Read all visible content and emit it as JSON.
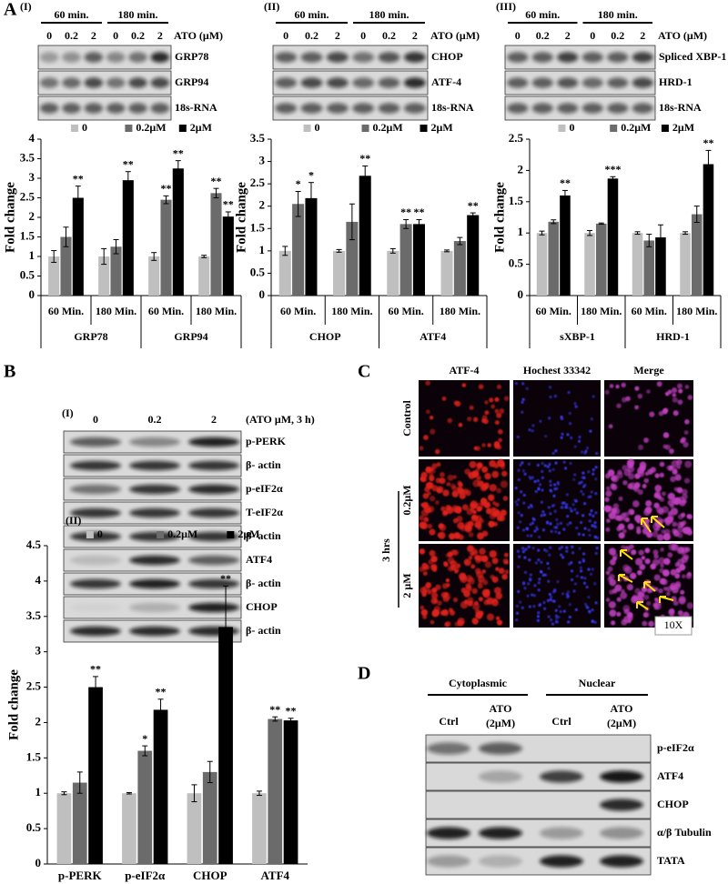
{
  "panel_labels": [
    "A",
    "B",
    "C",
    "D"
  ],
  "panel_A": {
    "blots": [
      {
        "label": "(I)",
        "times": [
          "60 min.",
          "180 min."
        ],
        "doses": [
          "0",
          "0.2",
          "2",
          "0",
          "0.2",
          "2"
        ],
        "unit": "ATO (μM)",
        "rows": [
          "GRP78",
          "GRP94",
          "18s-RNA"
        ]
      },
      {
        "label": "(II)",
        "times": [
          "60 min.",
          "180 min."
        ],
        "doses": [
          "0",
          "0.2",
          "2",
          "0",
          "0.2",
          "2"
        ],
        "unit": "ATO (μM)",
        "rows": [
          "CHOP",
          "ATF-4",
          "18s-RNA"
        ]
      },
      {
        "label": "(III)",
        "times": [
          "60 min.",
          "180 min."
        ],
        "doses": [
          "0",
          "0.2",
          "2",
          "0",
          "0.2",
          "2"
        ],
        "unit": "ATO (μM)",
        "rows": [
          "Spliced XBP-1",
          "HRD-1",
          "18s-RNA"
        ]
      }
    ]
  },
  "chart_data": [
    {
      "type": "bar",
      "ylabel": "Fold change",
      "ylim": [
        0,
        4
      ],
      "yticks": [
        0,
        0.5,
        1,
        1.5,
        2,
        2.5,
        3,
        3.5,
        4
      ],
      "categories": [
        "60 Min.",
        "180 Min.",
        "60 Min.",
        "180 Min."
      ],
      "groups": [
        "GRP78",
        "GRP94"
      ],
      "series": [
        {
          "name": "0",
          "color": "#bfbfbf",
          "values": [
            1,
            1,
            1,
            1
          ],
          "errors": [
            0.15,
            0.2,
            0.1,
            0.03
          ],
          "annotations": [
            null,
            null,
            null,
            null
          ]
        },
        {
          "name": "0.2μM",
          "color": "#6b6b6b",
          "values": [
            1.5,
            1.25,
            2.45,
            2.62
          ],
          "errors": [
            0.25,
            0.18,
            0.1,
            0.12
          ],
          "annotations": [
            null,
            null,
            "**",
            "**"
          ]
        },
        {
          "name": "2μM",
          "color": "#000000",
          "values": [
            2.5,
            2.95,
            3.25,
            2.02
          ],
          "errors": [
            0.3,
            0.22,
            0.2,
            0.12
          ],
          "annotations": [
            "**",
            "**",
            "**",
            "**"
          ]
        }
      ]
    },
    {
      "type": "bar",
      "ylabel": "Fold change",
      "ylim": [
        0,
        3.5
      ],
      "yticks": [
        0,
        0.5,
        1,
        1.5,
        2,
        2.5,
        3,
        3.5
      ],
      "categories": [
        "60 Min.",
        "180 Min.",
        "60 Min.",
        "180 Min."
      ],
      "groups": [
        "CHOP",
        "ATF4"
      ],
      "series": [
        {
          "name": "0",
          "color": "#bfbfbf",
          "values": [
            1,
            1,
            1,
            1
          ],
          "errors": [
            0.1,
            0.03,
            0.05,
            0.02
          ],
          "annotations": [
            null,
            null,
            null,
            null
          ]
        },
        {
          "name": "0.2μM",
          "color": "#6b6b6b",
          "values": [
            2.05,
            1.65,
            1.6,
            1.22
          ],
          "errors": [
            0.28,
            0.4,
            0.1,
            0.08
          ],
          "annotations": [
            "*",
            null,
            "**",
            null
          ]
        },
        {
          "name": "2μM",
          "color": "#000000",
          "values": [
            2.18,
            2.68,
            1.6,
            1.8
          ],
          "errors": [
            0.35,
            0.22,
            0.1,
            0.05
          ],
          "annotations": [
            "*",
            "**",
            "**",
            "**"
          ]
        }
      ]
    },
    {
      "type": "bar",
      "ylabel": "Fold change",
      "ylim": [
        0,
        2.5
      ],
      "yticks": [
        0,
        0.5,
        1,
        1.5,
        2,
        2.5
      ],
      "categories": [
        "60 Min.",
        "180 Min.",
        "60 Min.",
        "180 Min."
      ],
      "groups": [
        "sXBP-1",
        "HRD-1"
      ],
      "series": [
        {
          "name": "0",
          "color": "#bfbfbf",
          "values": [
            1,
            1,
            1,
            1
          ],
          "errors": [
            0.03,
            0.04,
            0.02,
            0.02
          ],
          "annotations": [
            null,
            null,
            null,
            null
          ]
        },
        {
          "name": "0.2μM",
          "color": "#6b6b6b",
          "values": [
            1.18,
            1.15,
            0.88,
            1.3
          ],
          "errors": [
            0.03,
            0.01,
            0.1,
            0.13
          ],
          "annotations": [
            null,
            null,
            null,
            null
          ]
        },
        {
          "name": "2μM",
          "color": "#000000",
          "values": [
            1.6,
            1.87,
            0.93,
            2.1
          ],
          "errors": [
            0.08,
            0.03,
            0.2,
            0.22
          ],
          "annotations": [
            "**",
            "***",
            null,
            "**"
          ]
        }
      ]
    },
    {
      "type": "bar",
      "label": "(II)",
      "ylabel": "Fold change",
      "ylim": [
        0,
        4.5
      ],
      "yticks": [
        0,
        0.5,
        1,
        1.5,
        2,
        2.5,
        3,
        3.5,
        4,
        4.5
      ],
      "categories": [
        "p-PERK",
        "p-eIF2α",
        "CHOP",
        "ATF4"
      ],
      "series": [
        {
          "name": "0",
          "color": "#bfbfbf",
          "values": [
            1,
            1,
            1,
            1
          ],
          "errors": [
            0.02,
            0.01,
            0.12,
            0.03
          ],
          "annotations": [
            null,
            null,
            null,
            null
          ]
        },
        {
          "name": "0.2μM",
          "color": "#6b6b6b",
          "values": [
            1.15,
            1.6,
            1.3,
            2.05
          ],
          "errors": [
            0.15,
            0.07,
            0.15,
            0.03
          ],
          "annotations": [
            null,
            "*",
            null,
            "**"
          ]
        },
        {
          "name": "2μM",
          "color": "#000000",
          "values": [
            2.5,
            2.18,
            3.35,
            2.03
          ],
          "errors": [
            0.15,
            0.15,
            0.58,
            0.03
          ],
          "annotations": [
            "**",
            "**",
            "**",
            "**"
          ]
        }
      ]
    }
  ],
  "panel_B": {
    "label": "(I)",
    "doses": [
      "0",
      "0.2",
      "2"
    ],
    "condition": "(ATO μM, 3 h)",
    "rows": [
      "p-PERK",
      "β- actin",
      "p-eIF2α",
      "T-eIF2α",
      "β- actin",
      "ATF4",
      "β- actin",
      "CHOP",
      "β- actin"
    ]
  },
  "panel_C": {
    "columns": [
      "ATF-4",
      "Hochest 33342",
      "Merge"
    ],
    "rows": [
      "Control",
      "0.2μM",
      "2 μM"
    ],
    "time": "3 hrs",
    "magnification": "10X"
  },
  "panel_D": {
    "fractions": [
      "Cytoplasmic",
      "Nuclear"
    ],
    "lanes": [
      [
        "Ctrl"
      ],
      [
        "ATO",
        "(2μM)"
      ],
      [
        "Ctrl"
      ],
      [
        "ATO",
        "(2μM)"
      ]
    ],
    "rows": [
      "p-eIF2α",
      "ATF4",
      "CHOP",
      "α/β Tubulin",
      "TATA"
    ]
  }
}
